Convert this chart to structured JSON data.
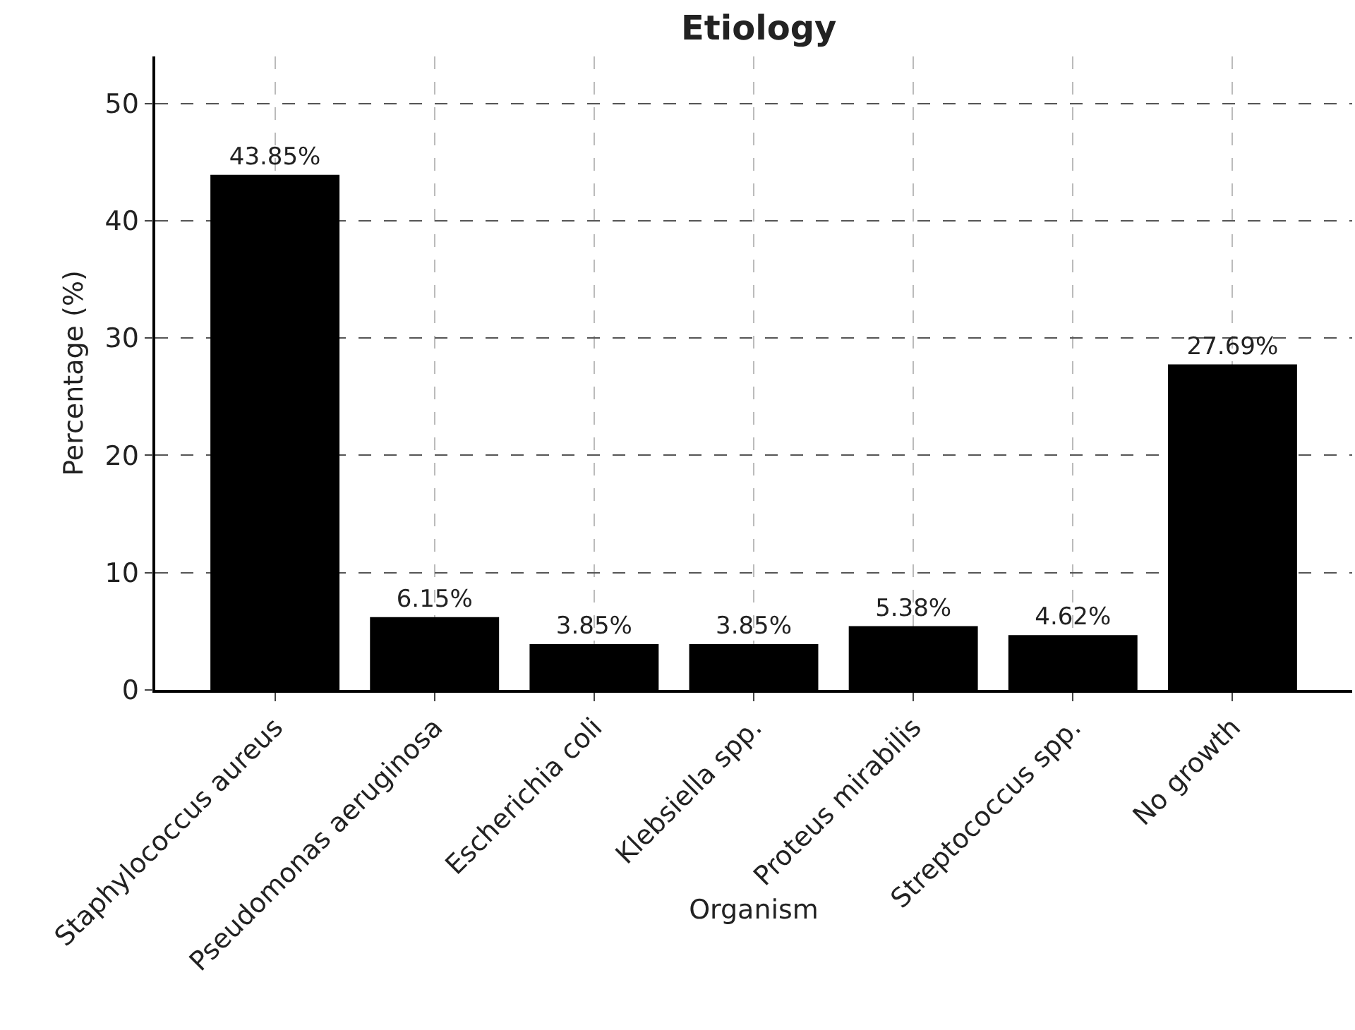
{
  "chart_data": {
    "type": "bar",
    "title": "Etiology",
    "xlabel": "Organism",
    "ylabel": "Percentage (%)",
    "categories": [
      "Staphylococcus aureus",
      "Pseudomonas aeruginosa",
      "Escherichia coli",
      "Klebsiella spp.",
      "Proteus mirabilis",
      "Streptococcus spp.",
      "No growth"
    ],
    "values": [
      43.85,
      6.15,
      3.85,
      3.85,
      5.38,
      4.62,
      27.69
    ],
    "value_labels": [
      "43.85%",
      "6.15%",
      "3.85%",
      "3.85%",
      "5.38%",
      "4.62%",
      "27.69%"
    ],
    "color": "#000000",
    "ylim": [
      0,
      54
    ],
    "yticks": [
      0,
      10,
      20,
      30,
      40,
      50
    ],
    "grid": true
  }
}
